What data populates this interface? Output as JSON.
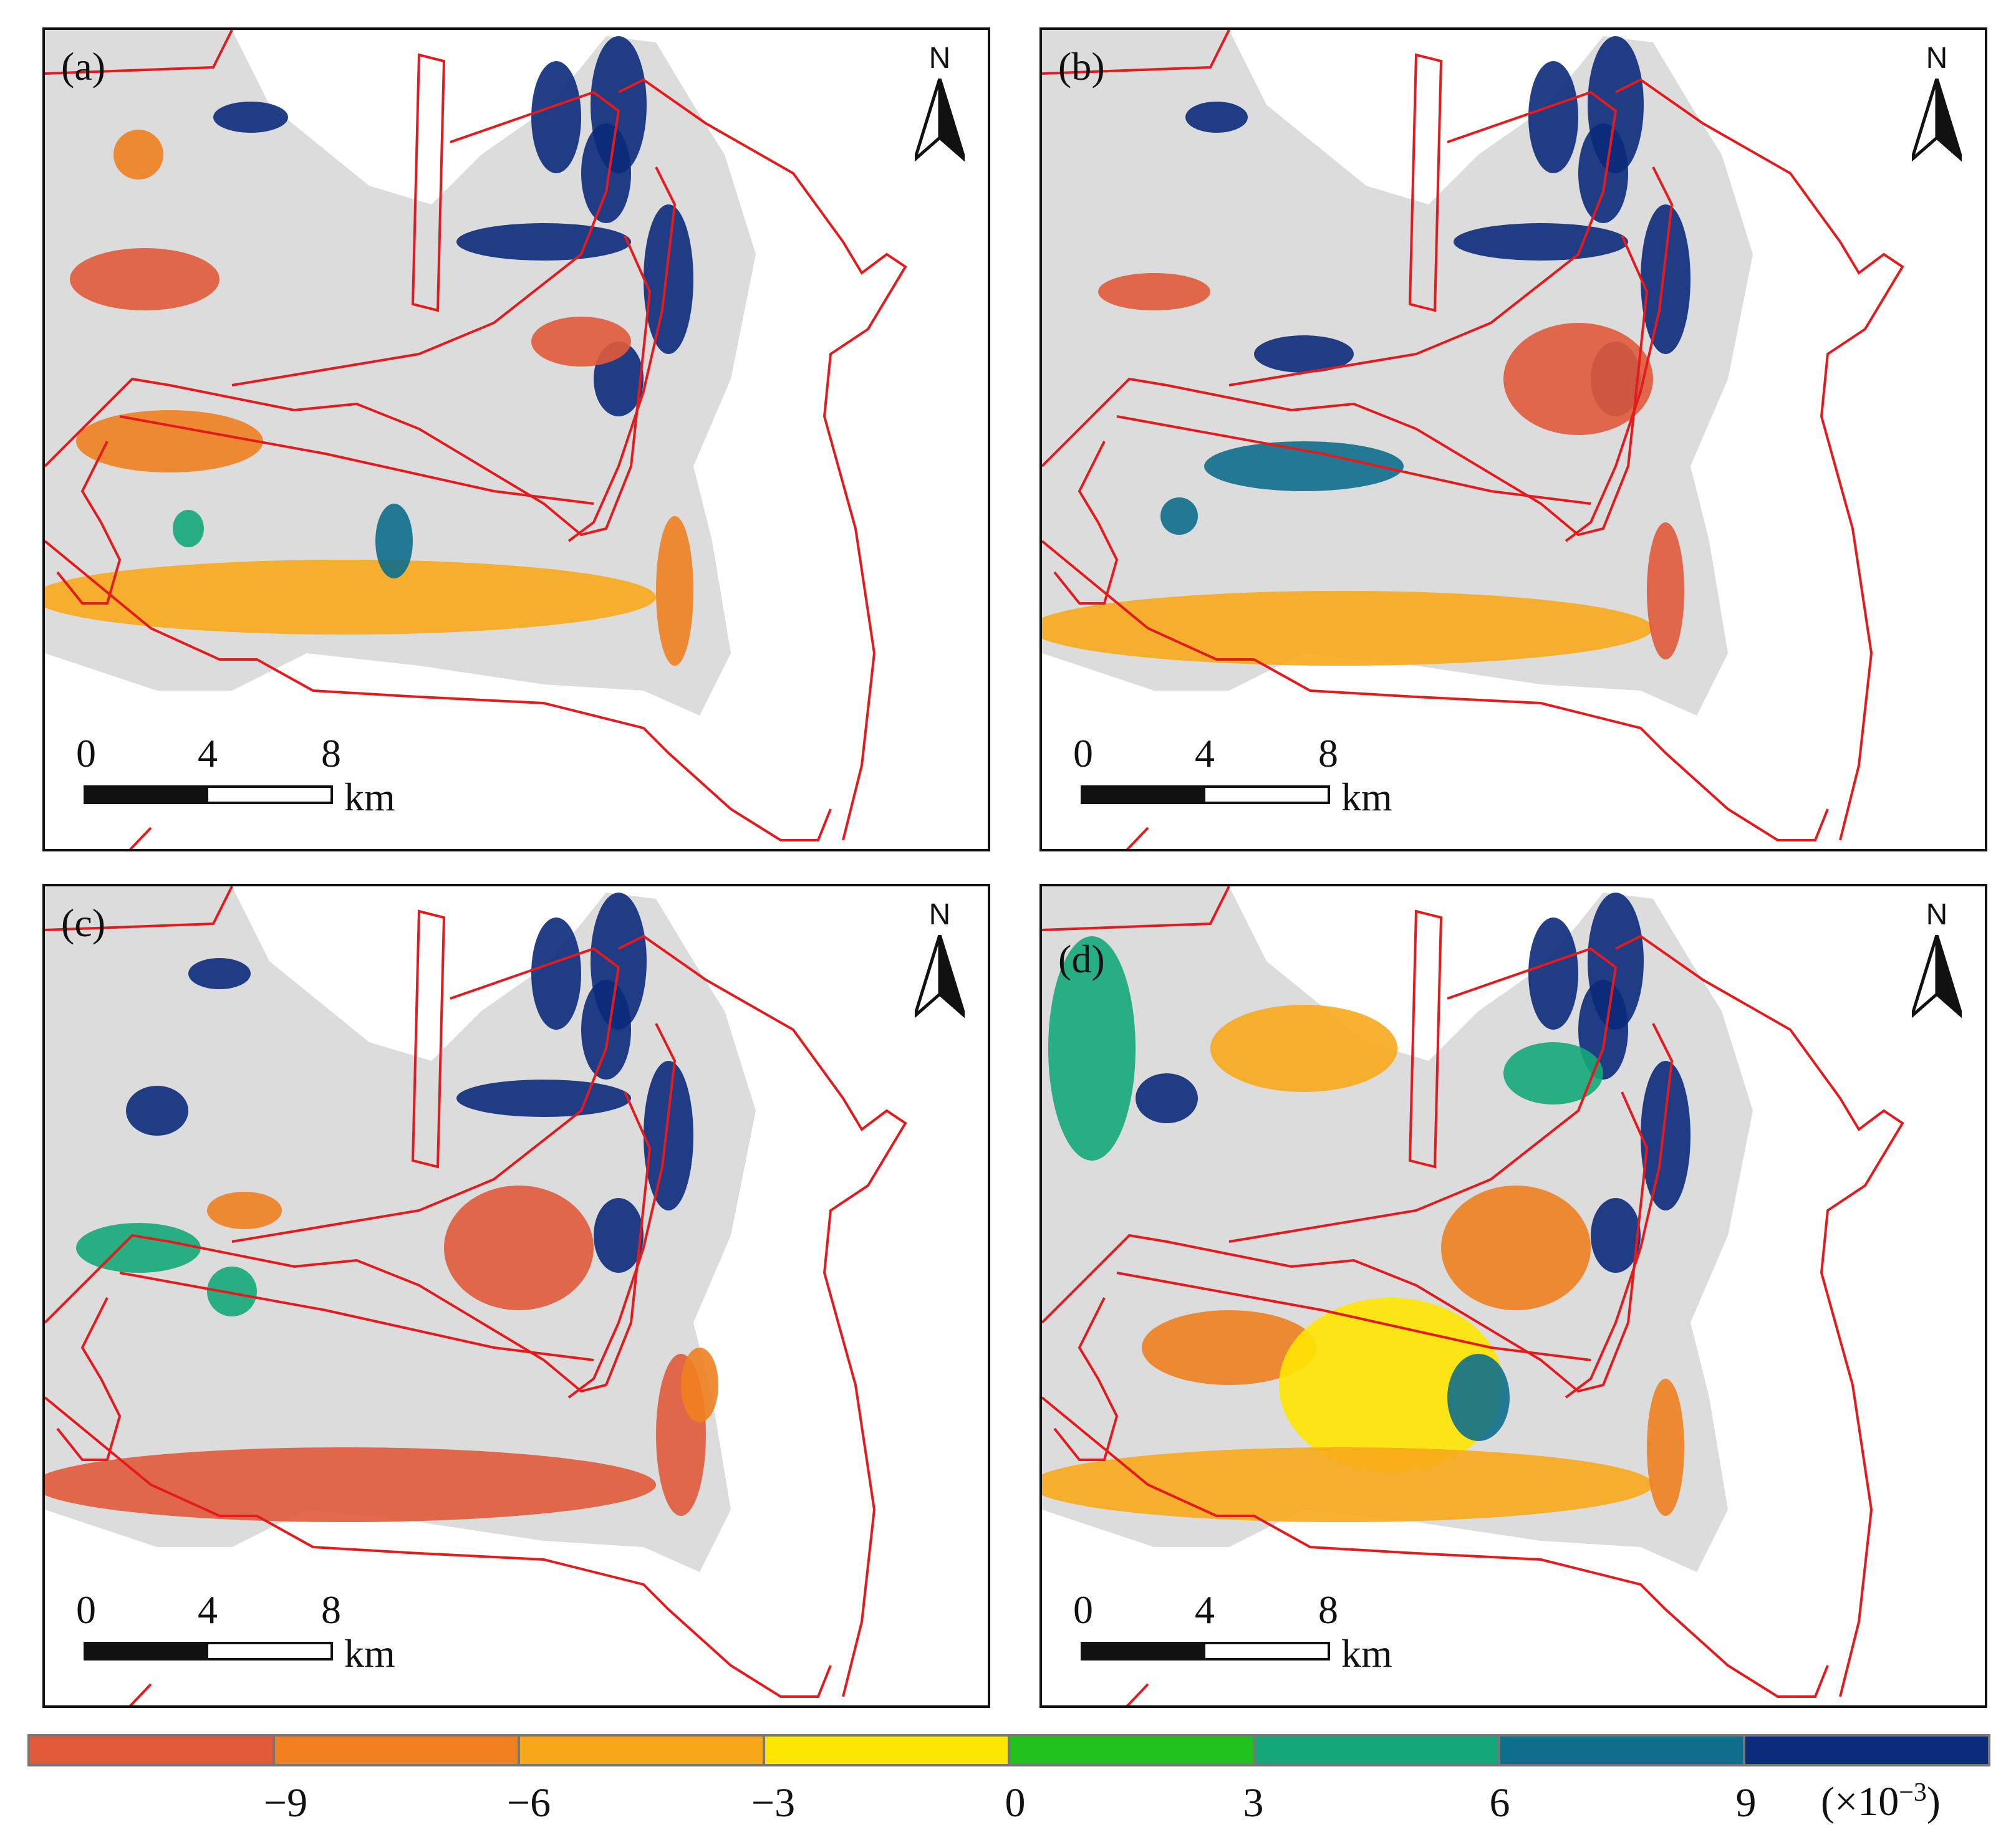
{
  "panels": [
    {
      "label": "(a)"
    },
    {
      "label": "(b)"
    },
    {
      "label": "(c)"
    },
    {
      "label": "(d)"
    }
  ],
  "north_arrow_label": "N",
  "scale_bar": {
    "ticks": [
      "0",
      "4",
      "8"
    ],
    "unit": "km"
  },
  "legend": {
    "colors": [
      "#e05a3a",
      "#f08020",
      "#f7a81a",
      "#ffe600",
      "#22c21e",
      "#14a878",
      "#0e6e8c",
      "#0a2a7a"
    ],
    "tick_labels": [
      "−9",
      "−6",
      "−3",
      "0",
      "3",
      "6",
      "9"
    ],
    "unit_prefix": "(×10",
    "unit_exponent": "−3",
    "unit_suffix": ")"
  },
  "colors": {
    "land": "#dcdcdc",
    "boundary": "#e41a1c",
    "frame": "#111111"
  }
}
